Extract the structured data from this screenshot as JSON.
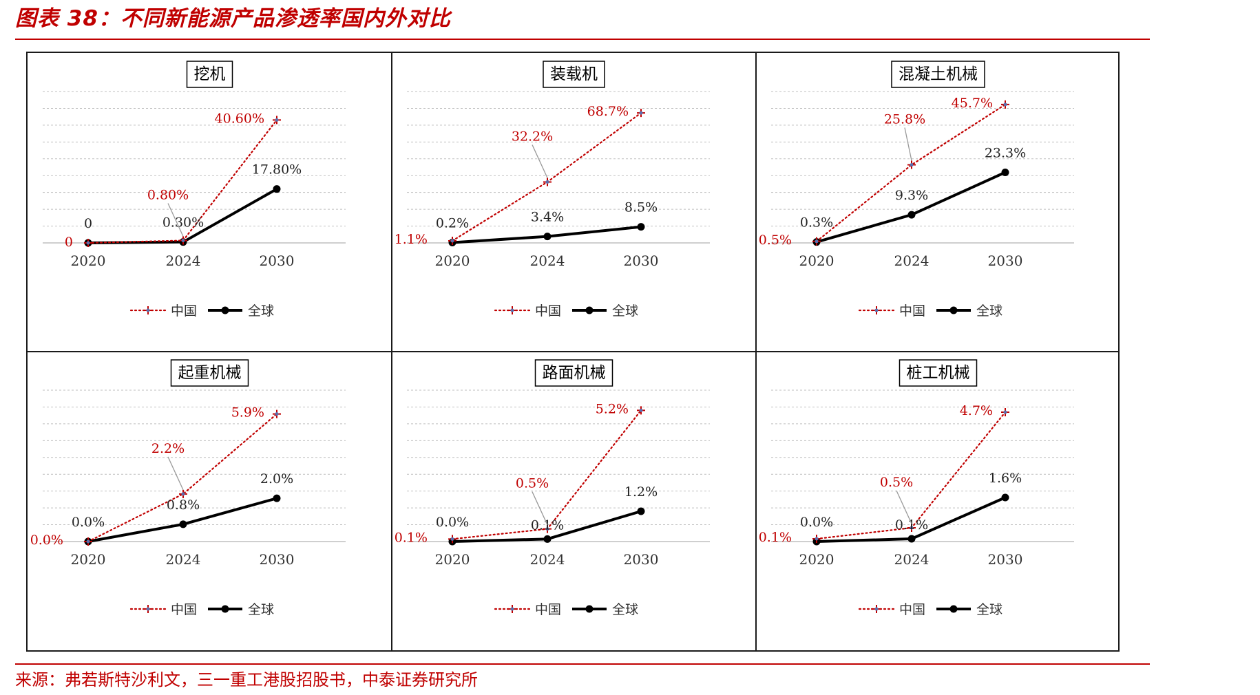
{
  "page": {
    "title": "图表 38：不同新能源产品渗透率国内外对比",
    "source": "来源：弗若斯特沙利文，三一重工港股招股书，中泰证券研究所"
  },
  "colors": {
    "china": "#c00000",
    "global": "#000000",
    "grid": "#bfbfbf",
    "marker": "#5b6fae"
  },
  "chart_data": [
    {
      "type": "line",
      "title": "挖机",
      "categories": [
        "2020",
        "2024",
        "2030"
      ],
      "ylim": [
        0,
        50
      ],
      "grid": true,
      "legend": "bottom",
      "series": [
        {
          "name": "中国",
          "values": [
            0,
            0.8,
            40.6
          ],
          "labels": [
            "0",
            "0.80%",
            "40.60%"
          ],
          "style": "dotted"
        },
        {
          "name": "全球",
          "values": [
            0,
            0.3,
            17.8
          ],
          "labels": [
            "0",
            "0.30%",
            "17.80%"
          ],
          "style": "solid"
        }
      ]
    },
    {
      "type": "line",
      "title": "装载机",
      "categories": [
        "2020",
        "2024",
        "2030"
      ],
      "ylim": [
        0,
        80
      ],
      "grid": true,
      "legend": "bottom",
      "series": [
        {
          "name": "中国",
          "values": [
            1.1,
            32.2,
            68.7
          ],
          "labels": [
            "1.1%",
            "32.2%",
            "68.7%"
          ],
          "style": "dotted"
        },
        {
          "name": "全球",
          "values": [
            0.2,
            3.4,
            8.5
          ],
          "labels": [
            "0.2%",
            "3.4%",
            "8.5%"
          ],
          "style": "solid"
        }
      ]
    },
    {
      "type": "line",
      "title": "混凝土机械",
      "categories": [
        "2020",
        "2024",
        "2030"
      ],
      "ylim": [
        0,
        50
      ],
      "grid": true,
      "legend": "bottom",
      "series": [
        {
          "name": "中国",
          "values": [
            0.5,
            25.8,
            45.7
          ],
          "labels": [
            "0.5%",
            "25.8%",
            "45.7%"
          ],
          "style": "dotted"
        },
        {
          "name": "全球",
          "values": [
            0.3,
            9.3,
            23.3
          ],
          "labels": [
            "0.3%",
            "9.3%",
            "23.3%"
          ],
          "style": "solid"
        }
      ]
    },
    {
      "type": "line",
      "title": "起重机械",
      "categories": [
        "2020",
        "2024",
        "2030"
      ],
      "ylim": [
        0,
        7
      ],
      "grid": true,
      "legend": "bottom",
      "series": [
        {
          "name": "中国",
          "values": [
            0.0,
            2.2,
            5.9
          ],
          "labels": [
            "0.0%",
            "2.2%",
            "5.9%"
          ],
          "style": "dotted"
        },
        {
          "name": "全球",
          "values": [
            0.0,
            0.8,
            2.0
          ],
          "labels": [
            "0.0%",
            "0.8%",
            "2.0%"
          ],
          "style": "solid"
        }
      ]
    },
    {
      "type": "line",
      "title": "路面机械",
      "categories": [
        "2020",
        "2024",
        "2030"
      ],
      "ylim": [
        0,
        6
      ],
      "grid": true,
      "legend": "bottom",
      "series": [
        {
          "name": "中国",
          "values": [
            0.1,
            0.5,
            5.2
          ],
          "labels": [
            "0.1%",
            "0.5%",
            "5.2%"
          ],
          "style": "dotted"
        },
        {
          "name": "全球",
          "values": [
            0.0,
            0.1,
            1.2
          ],
          "labels": [
            "0.0%",
            "0.1%",
            "1.2%"
          ],
          "style": "solid"
        }
      ]
    },
    {
      "type": "line",
      "title": "桩工机械",
      "categories": [
        "2020",
        "2024",
        "2030"
      ],
      "ylim": [
        0,
        5.5
      ],
      "grid": true,
      "legend": "bottom",
      "series": [
        {
          "name": "中国",
          "values": [
            0.1,
            0.5,
            4.7
          ],
          "labels": [
            "0.1%",
            "0.5%",
            "4.7%"
          ],
          "style": "dotted"
        },
        {
          "name": "全球",
          "values": [
            0.0,
            0.1,
            1.6
          ],
          "labels": [
            "0.0%",
            "0.1%",
            "1.6%"
          ],
          "style": "solid"
        }
      ]
    }
  ]
}
